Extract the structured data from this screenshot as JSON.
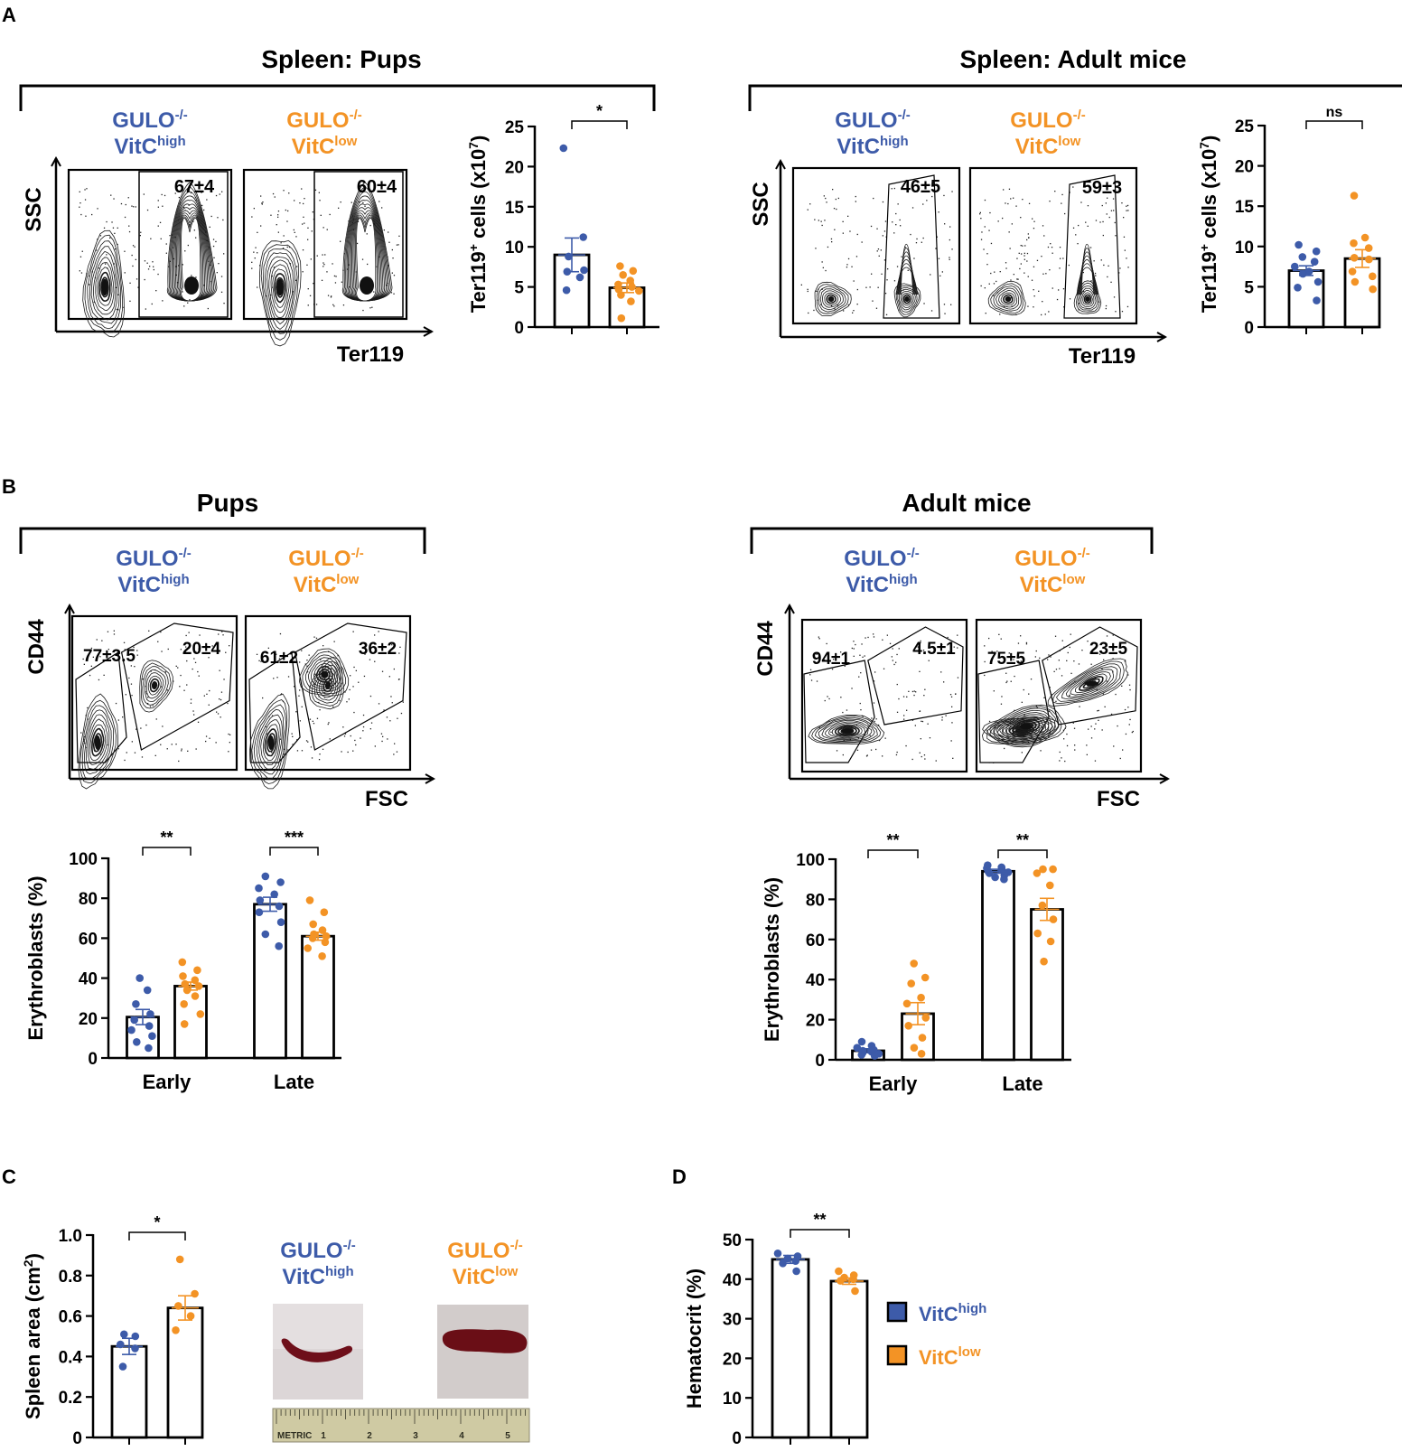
{
  "colors": {
    "high": "#3d5ba9",
    "low": "#f39325",
    "ink": "#000000",
    "contour": "#1a1a1a"
  },
  "labels": {
    "gulo": "GULO",
    "gulo_sup": "-/-",
    "vitc": "VitC",
    "high": "high",
    "low": "low",
    "ter119": "Ter119",
    "ssc": "SSC",
    "cd44": "CD44",
    "fsc": "FSC",
    "ter_ylabel_a": "Ter119",
    "ter_ylabel_sup": "+",
    "ter_ylabel_b": " cells (x10",
    "ter_ylabel_exp": "7",
    "ter_ylabel_c": ")",
    "metric": "METRIC"
  },
  "panels": {
    "A": {
      "letter": "A",
      "left_title": "Spleen: Pups",
      "right_title": "Spleen: Adult mice"
    },
    "B": {
      "letter": "B",
      "left_title": "Pups",
      "right_title": "Adult mice"
    },
    "C": {
      "letter": "C"
    },
    "D": {
      "letter": "D"
    }
  },
  "flow": {
    "a_pups": [
      "67±4",
      "60±4"
    ],
    "a_adult": [
      "46±5",
      "59±3"
    ],
    "b_pups": [
      [
        "77±3.5",
        "20±4"
      ],
      [
        "61±2",
        "36±2"
      ]
    ],
    "b_adult": [
      [
        "94±1",
        "4.5±1"
      ],
      [
        "75±5",
        "23±5"
      ]
    ]
  },
  "legend": {
    "high_label": "VitC",
    "high_sup": "high",
    "low_label": "VitC",
    "low_sup": "low"
  },
  "ruler": {
    "marks": [
      "1",
      "2",
      "3",
      "4",
      "5"
    ]
  },
  "chart_data": [
    {
      "id": "a_pups_counts",
      "type": "bar",
      "title": "",
      "ylabel": "Ter119+ cells (x10^7)",
      "ylim": [
        0,
        25
      ],
      "yticks": [
        0,
        5,
        10,
        15,
        20,
        25
      ],
      "categories": [
        "VitC high",
        "VitC low"
      ],
      "values": [
        9.0,
        4.9
      ],
      "errors": [
        2.1,
        0.6
      ],
      "points": [
        [
          22.3,
          11.2,
          8.8,
          7.1,
          6.9,
          6.2,
          4.6
        ],
        [
          7.6,
          7.0,
          6.5,
          5.8,
          5.3,
          5.0,
          4.7,
          4.5,
          4.0,
          3.2,
          1.1
        ]
      ],
      "significance": [
        {
          "from": 0,
          "to": 1,
          "label": "*"
        }
      ]
    },
    {
      "id": "a_adult_counts",
      "type": "bar",
      "title": "",
      "ylabel": "Ter119+ cells (x10^7)",
      "ylim": [
        0,
        25
      ],
      "yticks": [
        0,
        5,
        10,
        15,
        20,
        25
      ],
      "categories": [
        "VitC high",
        "VitC low"
      ],
      "values": [
        7.0,
        8.5
      ],
      "errors": [
        0.6,
        1.1
      ],
      "points": [
        [
          10.2,
          9.4,
          8.7,
          8.1,
          7.5,
          6.9,
          6.6,
          5.6,
          4.9,
          3.3
        ],
        [
          16.3,
          11.1,
          10.4,
          9.8,
          8.6,
          8.4,
          6.9,
          6.3,
          5.6,
          4.7
        ]
      ],
      "significance": [
        {
          "from": 0,
          "to": 1,
          "label": "ns"
        }
      ]
    },
    {
      "id": "b_pups_erythroblasts",
      "type": "bar",
      "title": "",
      "ylabel": "Erythroblasts (%)",
      "ylim": [
        0,
        100
      ],
      "yticks": [
        0,
        20,
        40,
        60,
        80,
        100
      ],
      "categories": [
        "Early",
        "Late"
      ],
      "series": [
        {
          "name": "VitC high",
          "values": [
            20.5,
            77.0
          ],
          "errors": [
            3.8,
            3.5
          ],
          "points": [
            [
              40,
              34,
              27,
              22,
              19,
              16,
              14,
              11,
              8,
              5
            ],
            [
              91,
              88,
              85,
              82,
              79,
              76,
              73,
              68,
              62,
              56
            ]
          ]
        },
        {
          "name": "VitC low",
          "values": [
            36.0,
            61.0
          ],
          "errors": [
            2.0,
            2.0
          ],
          "points": [
            [
              48,
              44,
              41,
              39,
              37,
              36,
              34,
              31,
              27,
              22,
              17
            ],
            [
              79,
              73,
              67,
              64,
              62,
              61,
              60,
              58,
              55,
              51
            ]
          ]
        }
      ],
      "significance": [
        {
          "group": 0,
          "label": "**"
        },
        {
          "group": 1,
          "label": "***"
        }
      ]
    },
    {
      "id": "b_adult_erythroblasts",
      "type": "bar",
      "title": "",
      "ylabel": "Erythroblasts (%)",
      "ylim": [
        0,
        100
      ],
      "yticks": [
        0,
        20,
        40,
        60,
        80,
        100
      ],
      "categories": [
        "Early",
        "Late"
      ],
      "series": [
        {
          "name": "VitC high",
          "values": [
            4.5,
            94.0
          ],
          "errors": [
            1.0,
            1.0
          ],
          "points": [
            [
              9,
              7,
              6,
              5,
              4.5,
              4,
              3.5,
              3,
              2.5,
              2
            ],
            [
              97,
              96,
              95.5,
              95,
              94,
              93.5,
              93,
              92,
              91,
              90
            ]
          ]
        },
        {
          "name": "VitC low",
          "values": [
            23.0,
            75.0
          ],
          "errors": [
            5.5,
            5.5
          ],
          "points": [
            [
              48,
              41,
              38,
              31,
              28,
              21,
              17,
              11,
              6,
              3
            ],
            [
              95,
              95,
              93,
              87,
              77,
              70,
              63,
              59,
              49
            ]
          ]
        }
      ],
      "significance": [
        {
          "group": 0,
          "label": "**"
        },
        {
          "group": 1,
          "label": "**"
        }
      ]
    },
    {
      "id": "c_spleen_area",
      "type": "bar",
      "title": "",
      "ylabel": "Spleen area (cm2)",
      "ylim": [
        0,
        1.0
      ],
      "yticks": [
        "0",
        "0.2",
        "0.4",
        "0.6",
        "0.8",
        "1.0"
      ],
      "categories": [
        "VitC high",
        "VitC low"
      ],
      "values": [
        0.45,
        0.64
      ],
      "errors": [
        0.04,
        0.06
      ],
      "points": [
        [
          0.51,
          0.5,
          0.46,
          0.44,
          0.35
        ],
        [
          0.88,
          0.71,
          0.65,
          0.6,
          0.53
        ]
      ],
      "significance": [
        {
          "from": 0,
          "to": 1,
          "label": "*"
        }
      ]
    },
    {
      "id": "d_hematocrit",
      "type": "bar",
      "title": "",
      "ylabel": "Hematocrit (%)",
      "ylim": [
        0,
        50
      ],
      "yticks": [
        0,
        10,
        20,
        30,
        40,
        50
      ],
      "categories": [
        "VitC high",
        "VitC low"
      ],
      "values": [
        45.0,
        39.5
      ],
      "errors": [
        1.0,
        0.8
      ],
      "points": [
        [
          46.5,
          45.8,
          45.2,
          44.6,
          44.0,
          42.0
        ],
        [
          42.0,
          41.0,
          40.4,
          40.0,
          39.6,
          37.0
        ]
      ],
      "significance": [
        {
          "from": 0,
          "to": 1,
          "label": "**"
        }
      ]
    }
  ]
}
